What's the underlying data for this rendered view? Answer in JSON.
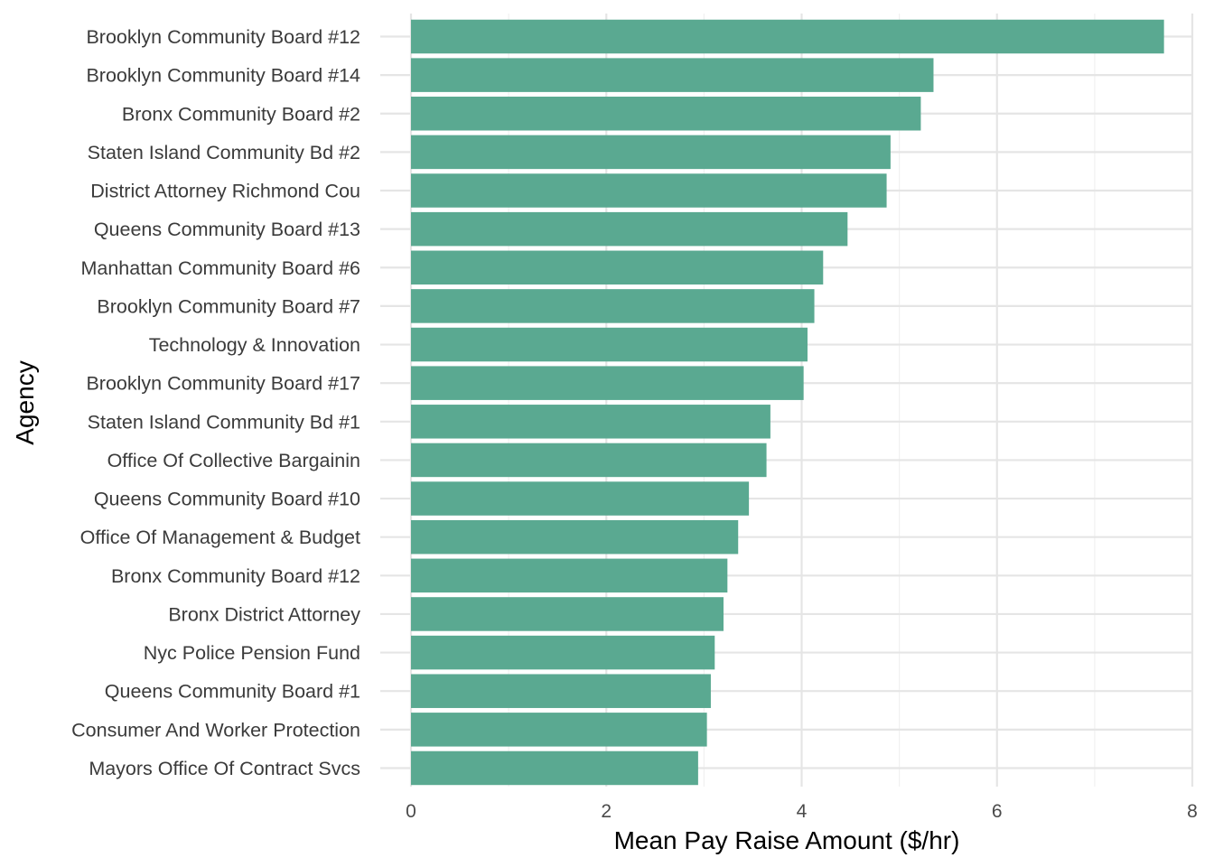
{
  "chart_data": {
    "type": "bar",
    "orientation": "horizontal",
    "categories": [
      "Brooklyn Community Board #12",
      "Brooklyn Community Board #14",
      "Bronx Community Board #2",
      "Staten Island Community Bd #2",
      "District Attorney Richmond Cou",
      "Queens Community Board #13",
      "Manhattan Community Board #6",
      "Brooklyn Community Board #7",
      "Technology & Innovation",
      "Brooklyn Community Board #17",
      "Staten Island Community Bd #1",
      "Office Of Collective Bargainin",
      "Queens Community Board #10",
      "Office Of Management & Budget",
      "Bronx Community Board #12",
      "Bronx District Attorney",
      "Nyc Police Pension Fund",
      "Queens Community Board #1",
      "Consumer And Worker Protection",
      "Mayors Office Of Contract Svcs"
    ],
    "values": [
      7.71,
      5.35,
      5.22,
      4.91,
      4.87,
      4.47,
      4.22,
      4.13,
      4.06,
      4.02,
      3.68,
      3.64,
      3.46,
      3.35,
      3.24,
      3.2,
      3.11,
      3.07,
      3.03,
      2.94
    ],
    "title": "",
    "xlabel": "Mean Pay Raise Amount ($/hr)",
    "ylabel": "Agency",
    "xlim": [
      0,
      8
    ],
    "x_ticks": [
      0,
      2,
      4,
      6,
      8
    ],
    "x_tick_labels": [
      "0",
      "2",
      "4",
      "6",
      "8"
    ],
    "grid": true,
    "legend": "none",
    "bar_color": "#5aa991"
  }
}
